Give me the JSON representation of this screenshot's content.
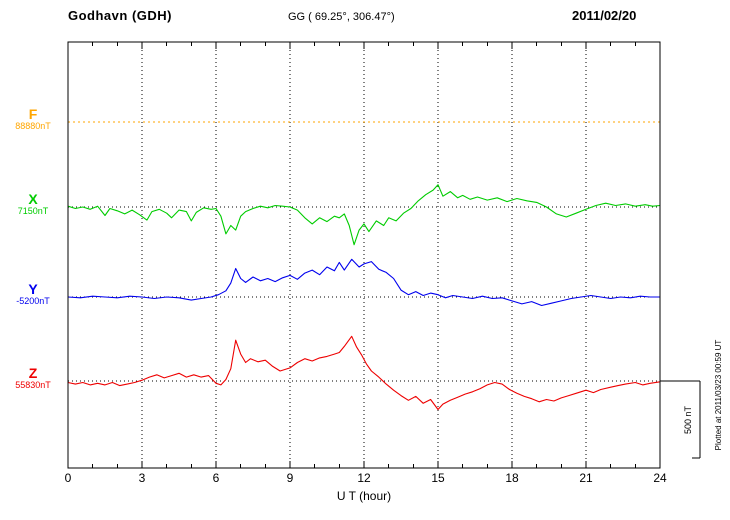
{
  "chart_data": {
    "type": "line",
    "title": "Godhavn (GDH)",
    "subtitle": "GG ( 69.25°, 306.47°)",
    "date": "2011/02/20",
    "xlabel": "U T (hour)",
    "xlim": [
      0,
      24
    ],
    "xticks": [
      0,
      3,
      6,
      9,
      12,
      15,
      18,
      21,
      24
    ],
    "grid": "dotted vertical lines at 3-hour ticks, dotted horizontal baseline per channel",
    "legend_position": "left margin channel labels",
    "scale_bar": {
      "label": "500 nT",
      "nT": 500
    },
    "plotted_note": "Plotted at 2011/03/23 00:59 UT",
    "units": {
      "x": "hour UT",
      "y": "nT deviation from channel baseline"
    },
    "channels": [
      {
        "name": "F",
        "baseline_label": "88880nT",
        "baseline_nT": 88880,
        "color": "#FFA600",
        "line_style": "dotted",
        "points": [
          [
            0,
            0
          ],
          [
            24,
            0
          ]
        ]
      },
      {
        "name": "X",
        "baseline_label": "7150nT",
        "baseline_nT": 7150,
        "color": "#00CC00",
        "line_style": "solid",
        "points": [
          [
            0,
            5
          ],
          [
            0.3,
            -10
          ],
          [
            0.6,
            0
          ],
          [
            0.9,
            -15
          ],
          [
            1.2,
            5
          ],
          [
            1.5,
            -55
          ],
          [
            1.7,
            -10
          ],
          [
            2,
            -25
          ],
          [
            2.3,
            -45
          ],
          [
            2.6,
            -20
          ],
          [
            2.9,
            -50
          ],
          [
            3.2,
            -85
          ],
          [
            3.4,
            -30
          ],
          [
            3.7,
            -15
          ],
          [
            4,
            -40
          ],
          [
            4.2,
            -70
          ],
          [
            4.5,
            -20
          ],
          [
            4.8,
            -30
          ],
          [
            5,
            -90
          ],
          [
            5.2,
            -35
          ],
          [
            5.5,
            -5
          ],
          [
            5.8,
            -15
          ],
          [
            6,
            -10
          ],
          [
            6.2,
            -60
          ],
          [
            6.4,
            -175
          ],
          [
            6.6,
            -120
          ],
          [
            6.8,
            -150
          ],
          [
            7,
            -60
          ],
          [
            7.2,
            -30
          ],
          [
            7.5,
            -10
          ],
          [
            7.8,
            5
          ],
          [
            8.1,
            -5
          ],
          [
            8.4,
            10
          ],
          [
            8.7,
            5
          ],
          [
            9,
            0
          ],
          [
            9.3,
            -20
          ],
          [
            9.6,
            -70
          ],
          [
            9.9,
            -110
          ],
          [
            10.2,
            -70
          ],
          [
            10.5,
            -95
          ],
          [
            10.8,
            -60
          ],
          [
            11,
            -70
          ],
          [
            11.2,
            -45
          ],
          [
            11.4,
            -120
          ],
          [
            11.6,
            -245
          ],
          [
            11.8,
            -150
          ],
          [
            12,
            -110
          ],
          [
            12.2,
            -160
          ],
          [
            12.5,
            -90
          ],
          [
            12.8,
            -120
          ],
          [
            13,
            -70
          ],
          [
            13.3,
            -90
          ],
          [
            13.6,
            -40
          ],
          [
            13.9,
            -10
          ],
          [
            14.2,
            40
          ],
          [
            14.5,
            80
          ],
          [
            14.8,
            110
          ],
          [
            15,
            145
          ],
          [
            15.2,
            70
          ],
          [
            15.5,
            100
          ],
          [
            15.8,
            60
          ],
          [
            16,
            75
          ],
          [
            16.3,
            50
          ],
          [
            16.6,
            65
          ],
          [
            17,
            45
          ],
          [
            17.4,
            60
          ],
          [
            17.8,
            35
          ],
          [
            18.2,
            55
          ],
          [
            18.6,
            40
          ],
          [
            19,
            30
          ],
          [
            19.4,
            0
          ],
          [
            19.8,
            -45
          ],
          [
            20.2,
            -65
          ],
          [
            20.6,
            -40
          ],
          [
            21,
            -15
          ],
          [
            21.4,
            10
          ],
          [
            21.8,
            25
          ],
          [
            22.2,
            10
          ],
          [
            22.6,
            20
          ],
          [
            23,
            5
          ],
          [
            23.4,
            15
          ],
          [
            23.7,
            5
          ],
          [
            24,
            10
          ]
        ]
      },
      {
        "name": "Y",
        "baseline_label": "-5200nT",
        "baseline_nT": -5200,
        "color": "#0000EE",
        "line_style": "solid",
        "points": [
          [
            0,
            0
          ],
          [
            0.5,
            -5
          ],
          [
            1,
            5
          ],
          [
            1.5,
            0
          ],
          [
            2,
            -5
          ],
          [
            2.5,
            5
          ],
          [
            3,
            0
          ],
          [
            3.5,
            -10
          ],
          [
            4,
            0
          ],
          [
            4.5,
            -5
          ],
          [
            5,
            -20
          ],
          [
            5.4,
            -10
          ],
          [
            5.8,
            0
          ],
          [
            6.1,
            15
          ],
          [
            6.4,
            40
          ],
          [
            6.6,
            90
          ],
          [
            6.8,
            185
          ],
          [
            7,
            120
          ],
          [
            7.2,
            95
          ],
          [
            7.5,
            130
          ],
          [
            7.8,
            105
          ],
          [
            8.1,
            120
          ],
          [
            8.4,
            100
          ],
          [
            8.7,
            125
          ],
          [
            9,
            140
          ],
          [
            9.3,
            115
          ],
          [
            9.6,
            155
          ],
          [
            9.9,
            175
          ],
          [
            10.2,
            145
          ],
          [
            10.5,
            195
          ],
          [
            10.8,
            170
          ],
          [
            11,
            225
          ],
          [
            11.2,
            175
          ],
          [
            11.5,
            245
          ],
          [
            11.8,
            195
          ],
          [
            12,
            215
          ],
          [
            12.3,
            230
          ],
          [
            12.6,
            180
          ],
          [
            12.9,
            160
          ],
          [
            13.2,
            120
          ],
          [
            13.5,
            45
          ],
          [
            13.8,
            15
          ],
          [
            14.1,
            35
          ],
          [
            14.4,
            10
          ],
          [
            14.7,
            25
          ],
          [
            15,
            15
          ],
          [
            15.3,
            -5
          ],
          [
            15.6,
            10
          ],
          [
            16,
            0
          ],
          [
            16.4,
            -10
          ],
          [
            16.8,
            5
          ],
          [
            17.2,
            -10
          ],
          [
            17.6,
            -5
          ],
          [
            18,
            -25
          ],
          [
            18.4,
            -45
          ],
          [
            18.8,
            -30
          ],
          [
            19.2,
            -55
          ],
          [
            19.6,
            -40
          ],
          [
            20,
            -25
          ],
          [
            20.4,
            -10
          ],
          [
            20.8,
            0
          ],
          [
            21.2,
            10
          ],
          [
            21.6,
            0
          ],
          [
            22,
            -10
          ],
          [
            22.4,
            0
          ],
          [
            22.8,
            -5
          ],
          [
            23.2,
            5
          ],
          [
            23.6,
            0
          ],
          [
            24,
            0
          ]
        ]
      },
      {
        "name": "Z",
        "baseline_label": "55830nT",
        "baseline_nT": 55830,
        "color": "#EE0000",
        "line_style": "solid",
        "points": [
          [
            0,
            -10
          ],
          [
            0.3,
            -20
          ],
          [
            0.6,
            -10
          ],
          [
            0.9,
            -25
          ],
          [
            1.2,
            -15
          ],
          [
            1.5,
            -25
          ],
          [
            1.8,
            -10
          ],
          [
            2.1,
            -30
          ],
          [
            2.4,
            -20
          ],
          [
            2.7,
            -10
          ],
          [
            3,
            5
          ],
          [
            3.3,
            25
          ],
          [
            3.6,
            40
          ],
          [
            3.9,
            20
          ],
          [
            4.2,
            35
          ],
          [
            4.5,
            50
          ],
          [
            4.8,
            25
          ],
          [
            5.1,
            40
          ],
          [
            5.4,
            25
          ],
          [
            5.7,
            35
          ],
          [
            6,
            -15
          ],
          [
            6.2,
            -25
          ],
          [
            6.4,
            10
          ],
          [
            6.6,
            80
          ],
          [
            6.8,
            265
          ],
          [
            7,
            175
          ],
          [
            7.2,
            120
          ],
          [
            7.4,
            145
          ],
          [
            7.7,
            125
          ],
          [
            8,
            135
          ],
          [
            8.3,
            95
          ],
          [
            8.6,
            65
          ],
          [
            9,
            85
          ],
          [
            9.3,
            120
          ],
          [
            9.6,
            145
          ],
          [
            9.9,
            130
          ],
          [
            10.2,
            150
          ],
          [
            10.5,
            160
          ],
          [
            10.8,
            175
          ],
          [
            11,
            185
          ],
          [
            11.2,
            225
          ],
          [
            11.5,
            290
          ],
          [
            11.7,
            220
          ],
          [
            11.9,
            170
          ],
          [
            12.1,
            110
          ],
          [
            12.3,
            65
          ],
          [
            12.6,
            25
          ],
          [
            12.9,
            -20
          ],
          [
            13.2,
            -60
          ],
          [
            13.5,
            -95
          ],
          [
            13.8,
            -125
          ],
          [
            14.1,
            -100
          ],
          [
            14.4,
            -145
          ],
          [
            14.7,
            -120
          ],
          [
            15,
            -185
          ],
          [
            15.2,
            -150
          ],
          [
            15.5,
            -125
          ],
          [
            15.8,
            -105
          ],
          [
            16.1,
            -85
          ],
          [
            16.4,
            -70
          ],
          [
            16.7,
            -50
          ],
          [
            17,
            -25
          ],
          [
            17.3,
            -10
          ],
          [
            17.6,
            -20
          ],
          [
            17.9,
            -55
          ],
          [
            18.2,
            -80
          ],
          [
            18.5,
            -100
          ],
          [
            18.8,
            -115
          ],
          [
            19.1,
            -135
          ],
          [
            19.4,
            -120
          ],
          [
            19.7,
            -130
          ],
          [
            20,
            -110
          ],
          [
            20.3,
            -95
          ],
          [
            20.6,
            -80
          ],
          [
            21,
            -60
          ],
          [
            21.3,
            -75
          ],
          [
            21.6,
            -55
          ],
          [
            22,
            -40
          ],
          [
            22.3,
            -30
          ],
          [
            22.6,
            -20
          ],
          [
            23,
            -10
          ],
          [
            23.3,
            -25
          ],
          [
            23.6,
            -15
          ],
          [
            24,
            -5
          ]
        ]
      }
    ]
  }
}
